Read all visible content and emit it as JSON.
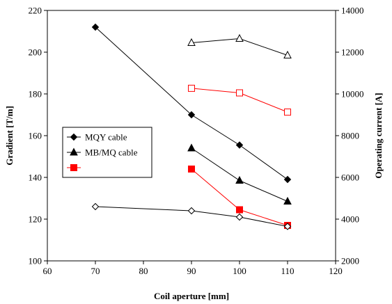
{
  "chart_data": {
    "type": "line",
    "xlabel": "Coil aperture [mm]",
    "ylabel_left": "Gradient [T/m]",
    "ylabel_right": "Operating current [A]",
    "xlim": [
      60,
      120
    ],
    "ylim_left": [
      100,
      220
    ],
    "ylim_right": [
      2000,
      14000
    ],
    "x_ticks": [
      "60",
      "70",
      "80",
      "90",
      "100",
      "110",
      "120"
    ],
    "y_left_ticks": [
      "100",
      "120",
      "140",
      "160",
      "180",
      "200",
      "220"
    ],
    "y_right_ticks": [
      "2000",
      "4000",
      "6000",
      "8000",
      "10000",
      "12000",
      "14000"
    ],
    "grid": false,
    "legend_position": "center-left",
    "series": [
      {
        "name": "MQY cable",
        "axis": "left",
        "marker": "diamond",
        "filled": true,
        "color": "#000000",
        "x": [
          70,
          90,
          100,
          110
        ],
        "y": [
          212,
          170,
          155.5,
          139
        ]
      },
      {
        "name": "MB/MQ cable",
        "axis": "left",
        "marker": "triangle",
        "filled": true,
        "color": "#000000",
        "x": [
          90,
          100,
          110
        ],
        "y": [
          154,
          138.5,
          128.5
        ]
      },
      {
        "name": "",
        "axis": "left",
        "marker": "square",
        "filled": true,
        "color": "#ff0000",
        "x": [
          90,
          100,
          110
        ],
        "y": [
          144,
          124.5,
          117
        ]
      },
      {
        "axis": "right",
        "marker": "diamond",
        "filled": false,
        "color": "#000000",
        "x": [
          70,
          90,
          100,
          110
        ],
        "y": [
          4600,
          4400,
          4100,
          3650
        ]
      },
      {
        "axis": "right",
        "marker": "triangle",
        "filled": false,
        "color": "#000000",
        "x": [
          90,
          100,
          110
        ],
        "y": [
          12450,
          12650,
          11850
        ]
      },
      {
        "axis": "right",
        "marker": "square",
        "filled": false,
        "color": "#ff0000",
        "x": [
          90,
          100,
          110
        ],
        "y": [
          10270,
          10050,
          9130
        ]
      }
    ]
  }
}
